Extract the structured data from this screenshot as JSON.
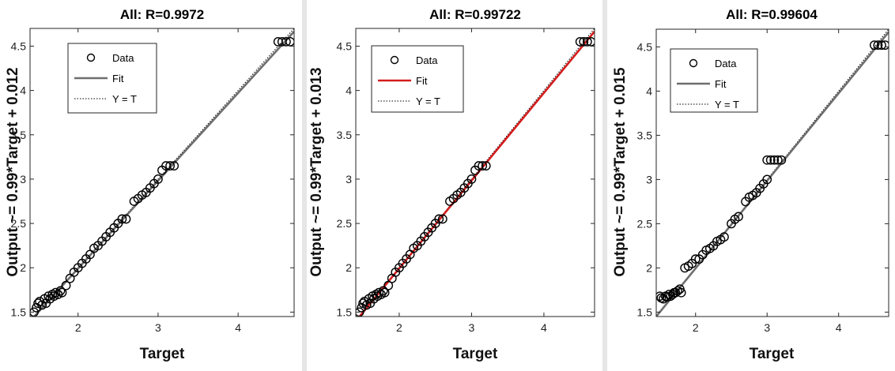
{
  "chart_data": [
    {
      "type": "scatter",
      "title": "All: R=0.9972",
      "xlabel": "Target",
      "ylabel": "Output ~= 0.99*Target + 0.012",
      "xlim": [
        1.4,
        4.7
      ],
      "ylim": [
        1.45,
        4.7
      ],
      "xticks": [
        "2",
        "3",
        "4"
      ],
      "xtick_values": [
        2,
        3,
        4
      ],
      "yticks": [
        "1.5",
        "2",
        "2.5",
        "3",
        "3.5",
        "4",
        "4.5"
      ],
      "ytick_values": [
        1.5,
        2,
        2.5,
        3,
        3.5,
        4,
        4.5
      ],
      "legend": [
        "Data",
        "Fit",
        "Y = T"
      ],
      "legend_position": "top-left",
      "fit": {
        "slope": 0.99,
        "intercept": 0.012,
        "color": "#6e6e6e"
      },
      "series": [
        {
          "name": "Data",
          "x": [
            1.45,
            1.48,
            1.5,
            1.52,
            1.55,
            1.58,
            1.6,
            1.63,
            1.65,
            1.68,
            1.7,
            1.72,
            1.75,
            1.78,
            1.8,
            1.85,
            1.9,
            1.95,
            2.0,
            2.05,
            2.1,
            2.15,
            2.2,
            2.25,
            2.3,
            2.35,
            2.4,
            2.45,
            2.5,
            2.55,
            2.6,
            2.7,
            2.75,
            2.8,
            2.85,
            2.9,
            2.95,
            3.0,
            3.05,
            3.1,
            3.15,
            3.2,
            4.5,
            4.55,
            4.6,
            4.65
          ],
          "y": [
            1.5,
            1.55,
            1.6,
            1.62,
            1.58,
            1.65,
            1.6,
            1.68,
            1.65,
            1.7,
            1.68,
            1.72,
            1.7,
            1.74,
            1.72,
            1.8,
            1.88,
            1.95,
            2.0,
            2.05,
            2.1,
            2.15,
            2.22,
            2.25,
            2.3,
            2.35,
            2.4,
            2.45,
            2.5,
            2.55,
            2.55,
            2.75,
            2.78,
            2.82,
            2.85,
            2.9,
            2.95,
            3.0,
            3.1,
            3.15,
            3.15,
            3.15,
            4.55,
            4.55,
            4.55,
            4.55
          ]
        }
      ]
    },
    {
      "type": "scatter",
      "title": "All: R=0.99722",
      "xlabel": "Target",
      "ylabel": "Output ~= 0.99*Target + 0.013",
      "xlim": [
        1.4,
        4.7
      ],
      "ylim": [
        1.45,
        4.7
      ],
      "xticks": [
        "2",
        "3",
        "4"
      ],
      "xtick_values": [
        2,
        3,
        4
      ],
      "yticks": [
        "1.5",
        "2",
        "2.5",
        "3",
        "3.5",
        "4",
        "4.5"
      ],
      "ytick_values": [
        1.5,
        2,
        2.5,
        3,
        3.5,
        4,
        4.5
      ],
      "legend": [
        "Data",
        "Fit",
        "Y = T"
      ],
      "legend_position": "top-left",
      "fit": {
        "slope": 0.99,
        "intercept": 0.013,
        "color": "#d41c1c"
      },
      "series": [
        {
          "name": "Data",
          "x": [
            1.45,
            1.48,
            1.5,
            1.52,
            1.55,
            1.58,
            1.6,
            1.63,
            1.65,
            1.68,
            1.7,
            1.72,
            1.75,
            1.78,
            1.8,
            1.85,
            1.9,
            1.95,
            2.0,
            2.05,
            2.1,
            2.15,
            2.2,
            2.25,
            2.3,
            2.35,
            2.4,
            2.45,
            2.5,
            2.55,
            2.6,
            2.7,
            2.75,
            2.8,
            2.85,
            2.9,
            2.95,
            3.0,
            3.05,
            3.1,
            3.15,
            3.2,
            4.5,
            4.55,
            4.6,
            4.65
          ],
          "y": [
            1.5,
            1.55,
            1.6,
            1.62,
            1.58,
            1.65,
            1.6,
            1.68,
            1.65,
            1.7,
            1.68,
            1.72,
            1.7,
            1.74,
            1.72,
            1.8,
            1.88,
            1.95,
            2.0,
            2.05,
            2.1,
            2.15,
            2.22,
            2.25,
            2.3,
            2.35,
            2.4,
            2.45,
            2.5,
            2.55,
            2.55,
            2.75,
            2.78,
            2.82,
            2.85,
            2.9,
            2.95,
            3.0,
            3.1,
            3.15,
            3.15,
            3.15,
            4.55,
            4.55,
            4.55,
            4.55
          ]
        }
      ]
    },
    {
      "type": "scatter",
      "title": "All: R=0.99604",
      "xlabel": "Target",
      "ylabel": "Output ~= 0.99*Target + 0.015",
      "xlim": [
        1.45,
        4.7
      ],
      "ylim": [
        1.45,
        4.7
      ],
      "xticks": [
        "2",
        "3",
        "4"
      ],
      "xtick_values": [
        2,
        3,
        4
      ],
      "yticks": [
        "1.5",
        "2",
        "2.5",
        "3",
        "3.5",
        "4",
        "4.5"
      ],
      "ytick_values": [
        1.5,
        2,
        2.5,
        3,
        3.5,
        4,
        4.5
      ],
      "legend": [
        "Data",
        "Fit",
        "Y = T"
      ],
      "legend_position": "top-left",
      "fit": {
        "slope": 0.99,
        "intercept": 0.015,
        "color": "#6e6e6e"
      },
      "series": [
        {
          "name": "Data",
          "x": [
            1.5,
            1.52,
            1.55,
            1.58,
            1.6,
            1.63,
            1.65,
            1.68,
            1.7,
            1.72,
            1.75,
            1.78,
            1.8,
            1.85,
            1.9,
            1.95,
            2.0,
            2.05,
            2.1,
            2.15,
            2.2,
            2.25,
            2.3,
            2.35,
            2.4,
            2.5,
            2.55,
            2.6,
            2.7,
            2.75,
            2.8,
            2.85,
            2.9,
            2.95,
            3.0,
            3.0,
            3.05,
            3.1,
            3.15,
            3.2,
            4.5,
            4.55,
            4.6,
            4.65
          ],
          "y": [
            1.68,
            1.66,
            1.65,
            1.68,
            1.67,
            1.7,
            1.68,
            1.7,
            1.72,
            1.72,
            1.74,
            1.76,
            1.72,
            2.0,
            2.02,
            2.05,
            2.1,
            2.1,
            2.15,
            2.2,
            2.22,
            2.25,
            2.3,
            2.32,
            2.35,
            2.5,
            2.55,
            2.58,
            2.75,
            2.8,
            2.82,
            2.85,
            2.9,
            2.95,
            3.0,
            3.22,
            3.22,
            3.22,
            3.22,
            3.22,
            4.52,
            4.52,
            4.52,
            4.52
          ]
        }
      ]
    }
  ]
}
